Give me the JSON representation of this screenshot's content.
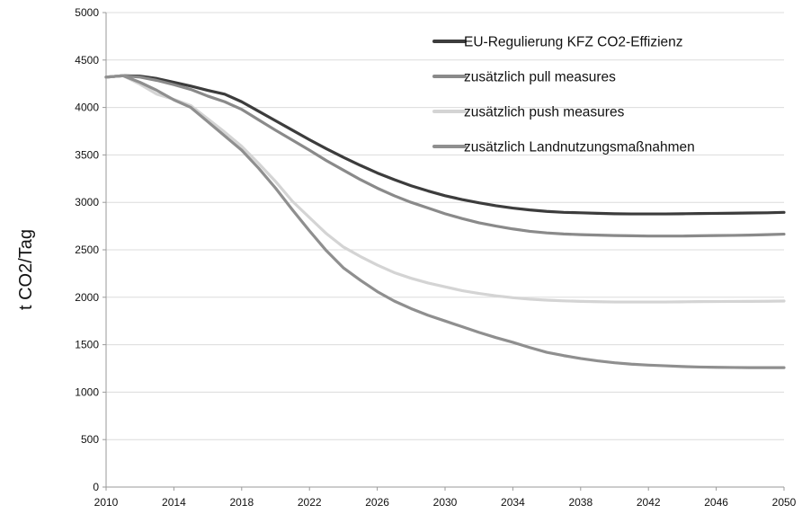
{
  "chart_data": {
    "type": "line",
    "title": "",
    "xlabel": "",
    "ylabel": "t CO2/Tag",
    "xlim": [
      2010,
      2050
    ],
    "ylim": [
      0,
      5000
    ],
    "x_ticks": [
      "2010",
      "2014",
      "2018",
      "2022",
      "2026",
      "2030",
      "2034",
      "2038",
      "2042",
      "2046",
      "2050"
    ],
    "y_ticks": [
      "0",
      "500",
      "1000",
      "1500",
      "2000",
      "2500",
      "3000",
      "3500",
      "4000",
      "4500",
      "5000"
    ],
    "grid": "horizontal",
    "legend_position": "top-right",
    "x": [
      2010,
      2011,
      2012,
      2013,
      2014,
      2015,
      2016,
      2017,
      2018,
      2019,
      2020,
      2021,
      2022,
      2023,
      2024,
      2025,
      2026,
      2027,
      2028,
      2029,
      2030,
      2031,
      2032,
      2033,
      2034,
      2035,
      2036,
      2037,
      2038,
      2039,
      2040,
      2041,
      2042,
      2043,
      2044,
      2045,
      2046,
      2047,
      2048,
      2049,
      2050
    ],
    "series": [
      {
        "name": "EU-Regulierung KFZ CO2-Effizienz",
        "color": "#3c3c3c",
        "values": [
          4320,
          4335,
          4330,
          4305,
          4265,
          4225,
          4180,
          4140,
          4060,
          3960,
          3860,
          3760,
          3660,
          3565,
          3475,
          3390,
          3310,
          3240,
          3175,
          3120,
          3070,
          3030,
          2995,
          2965,
          2940,
          2920,
          2905,
          2895,
          2890,
          2885,
          2880,
          2878,
          2878,
          2878,
          2880,
          2882,
          2884,
          2886,
          2888,
          2890,
          2895
        ]
      },
      {
        "name": "zusätzlich pull measures",
        "color": "#8a8a8a",
        "values": [
          4320,
          4335,
          4320,
          4285,
          4240,
          4190,
          4120,
          4060,
          3980,
          3870,
          3760,
          3655,
          3550,
          3440,
          3340,
          3240,
          3150,
          3070,
          3000,
          2940,
          2880,
          2830,
          2785,
          2750,
          2720,
          2695,
          2678,
          2667,
          2660,
          2655,
          2650,
          2648,
          2645,
          2645,
          2645,
          2648,
          2650,
          2652,
          2655,
          2660,
          2665
        ]
      },
      {
        "name": "zusätzlich push measures",
        "color": "#d4d4d4",
        "values": [
          4320,
          4335,
          4245,
          4140,
          4085,
          4020,
          3880,
          3740,
          3590,
          3410,
          3220,
          3010,
          2840,
          2670,
          2530,
          2430,
          2340,
          2260,
          2200,
          2150,
          2110,
          2070,
          2040,
          2015,
          1995,
          1980,
          1970,
          1962,
          1957,
          1953,
          1950,
          1950,
          1950,
          1950,
          1952,
          1954,
          1955,
          1956,
          1957,
          1958,
          1960
        ]
      },
      {
        "name": "zusätzlich Landnutzungsmaßnahmen",
        "color": "#8f8f8f",
        "values": [
          4320,
          4335,
          4265,
          4180,
          4080,
          4000,
          3850,
          3700,
          3550,
          3360,
          3150,
          2920,
          2700,
          2490,
          2310,
          2180,
          2060,
          1960,
          1880,
          1810,
          1750,
          1690,
          1630,
          1575,
          1525,
          1470,
          1420,
          1385,
          1355,
          1330,
          1310,
          1295,
          1285,
          1278,
          1270,
          1265,
          1262,
          1260,
          1258,
          1258,
          1258
        ]
      }
    ]
  }
}
